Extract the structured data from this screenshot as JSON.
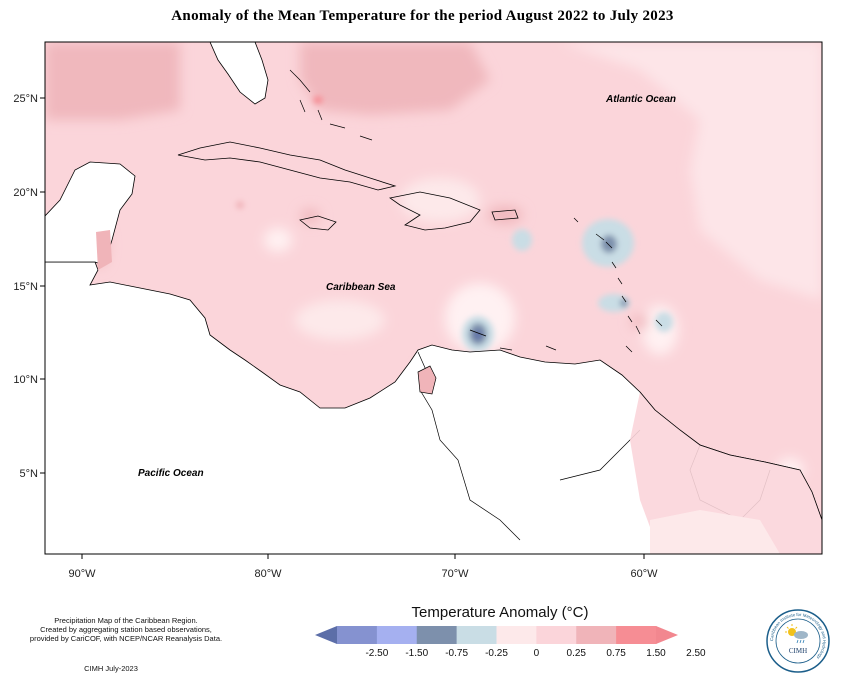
{
  "title": "Anomaly of the Mean Temperature for the period August 2022 to July 2023",
  "labels": {
    "atlantic": "Atlantic Ocean",
    "caribbean": "Caribbean Sea",
    "pacific": "Pacific Ocean"
  },
  "lat_ticks": [
    "25°N",
    "20°N",
    "15°N",
    "10°N",
    "5°N"
  ],
  "lon_ticks": [
    "90°W",
    "80°W",
    "70°W",
    "60°W"
  ],
  "legend": {
    "title": "Temperature Anomaly (°C)",
    "tick_labels": [
      "-2.50",
      "-1.50",
      "-0.75",
      "-0.25",
      "0",
      "0.25",
      "0.75",
      "1.50",
      "2.50"
    ],
    "colors": [
      "#5c6ea8",
      "#8592d0",
      "#a5b0f0",
      "#7d90ac",
      "#c9dde5",
      "#fde9ea",
      "#fbd5da",
      "#f0b4b9",
      "#f68d94",
      "#f2878f"
    ]
  },
  "credits": {
    "line1": "Precipitation Map of the Caribbean Region.",
    "line2": "Created by aggregating station based observations,",
    "line3": "provided by CariCOF, with NCEP/NCAR Reanalysis Data.",
    "date": "CIMH July-2023"
  },
  "logo": {
    "text": "CIMH",
    "ring_text": "Caribbean Institute for Meteorology and Hydrology",
    "icon": "sun-cloud-rain-logo"
  }
}
